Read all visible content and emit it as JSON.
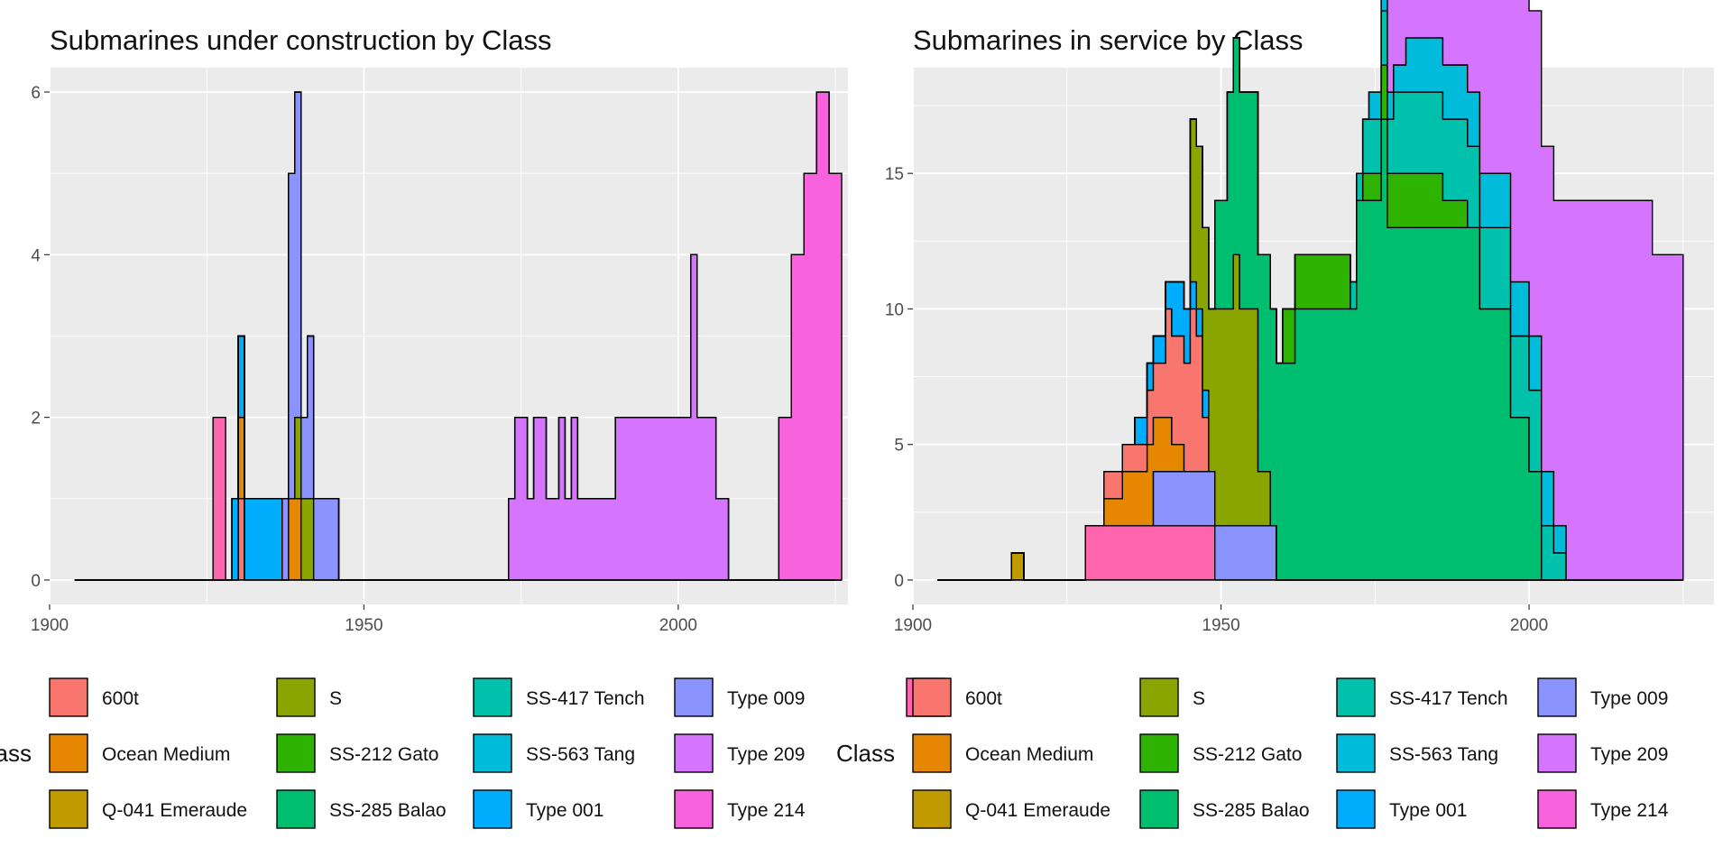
{
  "classes": [
    {
      "name": "600t",
      "color": "#F8766D"
    },
    {
      "name": "Ocean Medium",
      "color": "#E58700"
    },
    {
      "name": "Q-041 Emeraude",
      "color": "#C09B00"
    },
    {
      "name": "S",
      "color": "#8AA500"
    },
    {
      "name": "SS-212 Gato",
      "color": "#2EB300"
    },
    {
      "name": "SS-285 Balao",
      "color": "#00BE70"
    },
    {
      "name": "SS-417 Tench",
      "color": "#00C1AB"
    },
    {
      "name": "SS-563 Tang",
      "color": "#00BBDA"
    },
    {
      "name": "Type 001",
      "color": "#00ACFC"
    },
    {
      "name": "Type 009",
      "color": "#8B93FF"
    },
    {
      "name": "Type 209",
      "color": "#D575FE"
    },
    {
      "name": "Type 214",
      "color": "#F962DD"
    },
    {
      "name": "",
      "color": "#FF65AC"
    }
  ],
  "legend": {
    "title": "Class"
  },
  "chart_data": [
    {
      "type": "area",
      "stacked": true,
      "step": true,
      "title": "Submarines under construction by Class",
      "xlabel": "",
      "ylabel": "",
      "xlim": [
        1900,
        2027
      ],
      "ylim": [
        -0.3,
        6.3
      ],
      "xticks": [
        1900,
        1950,
        2000
      ],
      "yticks": [
        0,
        2,
        4,
        6
      ],
      "grid": true,
      "legend_position": "bottom",
      "x_range": [
        1904,
        2025
      ],
      "series": [
        {
          "class": "600t",
          "segments": [
            [
              1930,
              1931,
              1
            ]
          ]
        },
        {
          "class": "Ocean Medium",
          "segments": [
            [
              1930,
              1931,
              1
            ],
            [
              1938,
              1940,
              1
            ]
          ]
        },
        {
          "class": "S",
          "segments": [
            [
              1941,
              1942,
              1
            ],
            [
              1939,
              1941,
              1
            ]
          ]
        },
        {
          "class": "Type 001",
          "segments": [
            [
              1929,
              1937,
              1
            ]
          ]
        },
        {
          "class": "Type 009",
          "segments": [
            [
              1937,
              1946,
              1
            ],
            [
              1938,
              1940,
              3
            ],
            [
              1941,
              1942,
              1
            ]
          ]
        },
        {
          "class": "Type 209",
          "segments": [
            [
              1973,
              2008,
              1
            ],
            [
              1974,
              1976,
              1
            ],
            [
              1977,
              1979,
              1
            ],
            [
              1981,
              1982,
              1
            ],
            [
              1983,
              1984,
              1
            ],
            [
              1990,
              1998,
              1
            ],
            [
              1998,
              2000,
              1
            ],
            [
              2000,
              2006,
              1
            ],
            [
              2002,
              2003,
              2
            ]
          ]
        },
        {
          "class": "Type 214",
          "segments": [
            [
              2016,
              2026,
              2
            ],
            [
              2018,
              2026,
              2
            ],
            [
              2020,
              2026,
              1
            ],
            [
              2022,
              2024,
              1
            ]
          ]
        },
        {
          "class": "",
          "segments": [
            [
              1926,
              1928,
              2
            ]
          ]
        }
      ]
    },
    {
      "type": "area",
      "stacked": true,
      "step": true,
      "title": "Submarines in service by Class",
      "xlabel": "",
      "ylabel": "",
      "xlim": [
        1900,
        2030
      ],
      "ylim": [
        -0.9,
        18.9
      ],
      "xticks": [
        1900,
        1950,
        2000
      ],
      "yticks": [
        0,
        5,
        10,
        15
      ],
      "grid": true,
      "legend_position": "bottom",
      "x_range": [
        1904,
        2025
      ],
      "series": [
        {
          "class": "",
          "segments": [
            [
              1928,
              1949,
              2
            ]
          ]
        },
        {
          "class": "Type 009",
          "segments": [
            [
              1949,
              1959,
              2
            ],
            [
              1939,
              1949,
              2
            ]
          ]
        },
        {
          "class": "Q-041 Emeraude",
          "segments": [
            [
              1916,
              1918,
              1
            ]
          ]
        },
        {
          "class": "Ocean Medium",
          "segments": [
            [
              1931,
              1939,
              1
            ],
            [
              1934,
              1942,
              1
            ],
            [
              1938,
              1944,
              1
            ]
          ]
        },
        {
          "class": "600t",
          "segments": [
            [
              1931,
              1936,
              1
            ],
            [
              1936,
              1945,
              1
            ],
            [
              1938,
              1946,
              1
            ],
            [
              1941,
              1948,
              2
            ],
            [
              1945,
              1947,
              3
            ]
          ]
        },
        {
          "class": "Type 001",
          "segments": [
            [
              1936,
              1945,
              1
            ],
            [
              1942,
              1948,
              1
            ]
          ]
        },
        {
          "class": "S",
          "segments": [
            [
              1945,
              1958,
              2
            ],
            [
              1945,
              1956,
              4
            ],
            [
              1949,
              1953,
              2
            ],
            [
              1952,
              1956,
              2
            ]
          ]
        },
        {
          "class": "SS-285 Balao",
          "segments": [
            [
              1949,
              1977,
              4
            ],
            [
              1951,
              1997,
              4
            ],
            [
              1962,
              2000,
              2
            ],
            [
              1972,
              2002,
              4
            ],
            [
              1976,
              1992,
              3
            ]
          ]
        },
        {
          "class": "SS-212 Gato",
          "segments": [
            [
              1960,
              1971,
              2
            ],
            [
              1973,
              1990,
              1
            ],
            [
              1976,
              1986,
              1
            ]
          ]
        },
        {
          "class": "SS-417 Tench",
          "segments": [
            [
              1971,
              2002,
              1
            ],
            [
              1973,
              2004,
              1
            ],
            [
              1978,
              2006,
              1
            ]
          ]
        },
        {
          "class": "SS-563 Tang",
          "segments": [
            [
              1974,
              2004,
              1
            ],
            [
              1980,
              2006,
              1
            ]
          ]
        },
        {
          "class": "Type 209",
          "segments": [
            [
              1977,
              2025,
              12
            ],
            [
              2006,
              2020,
              2
            ]
          ]
        }
      ]
    }
  ]
}
